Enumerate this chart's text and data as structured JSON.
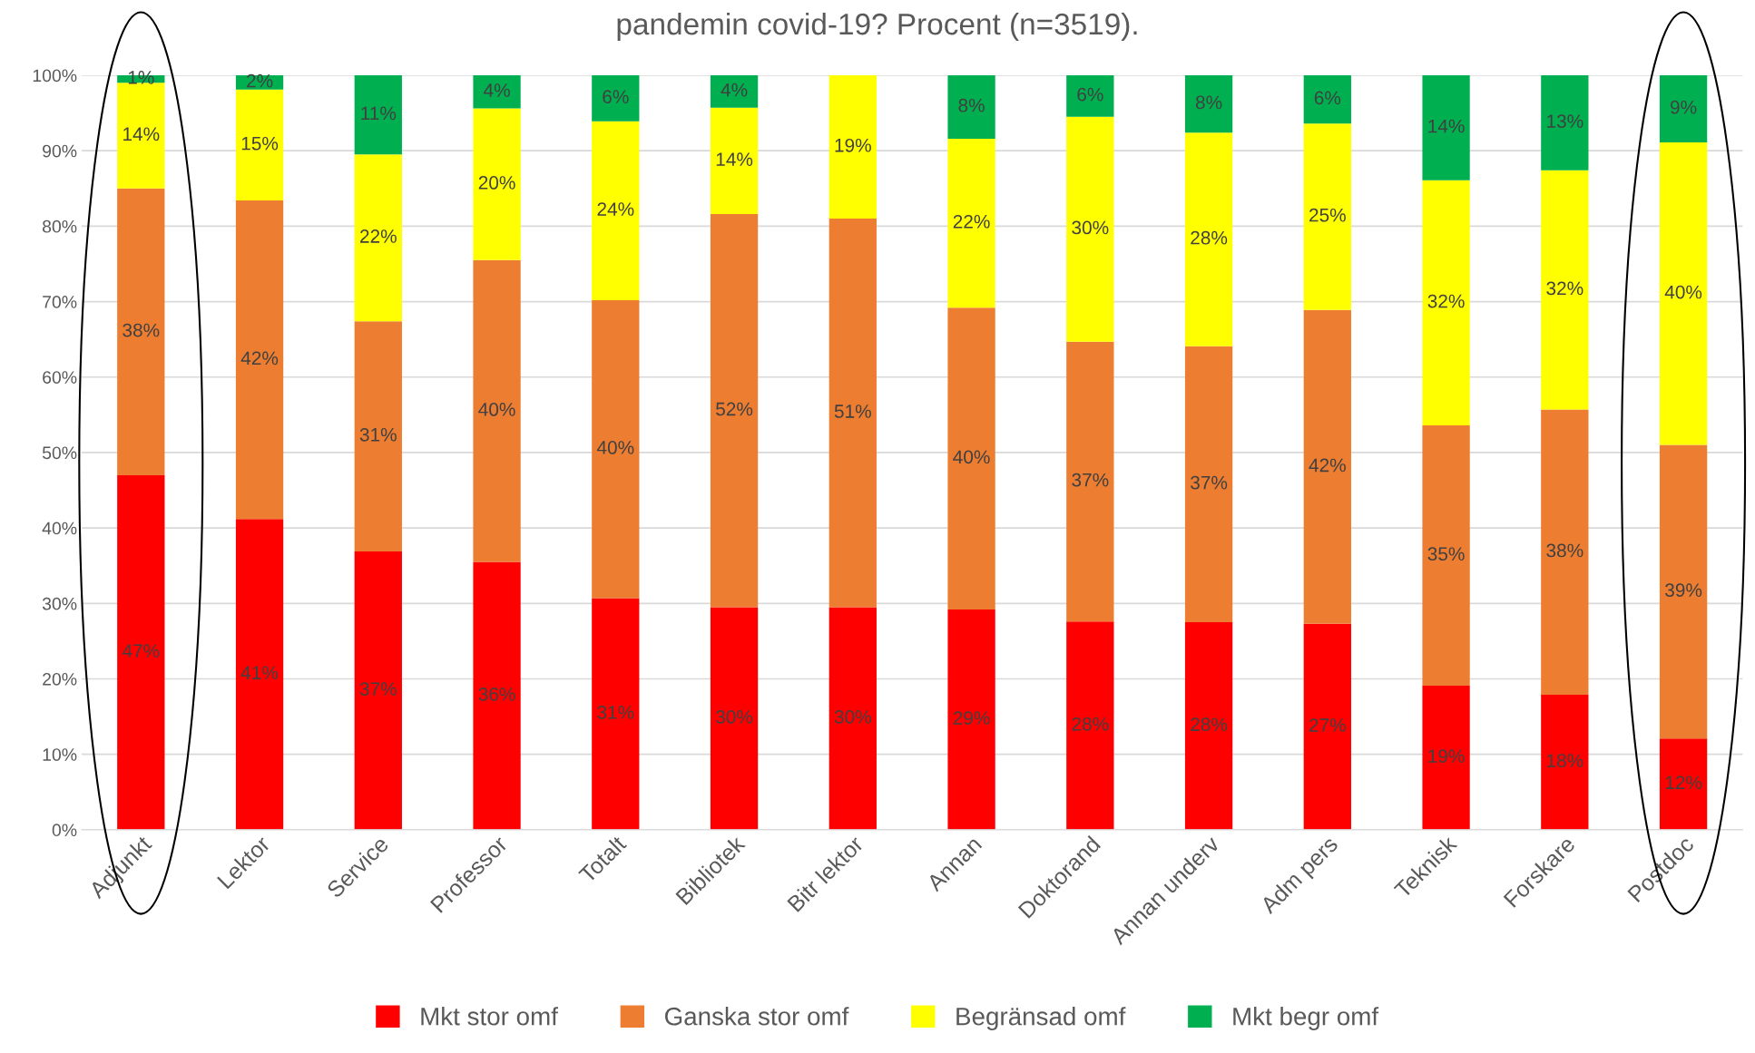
{
  "chart_data": {
    "type": "bar",
    "stacked": true,
    "title": "pandemin covid-19? Procent (n=3519).",
    "categories": [
      "Adjunkt",
      "Lektor",
      "Service",
      "Professor",
      "Totalt",
      "Bibliotek",
      "Bitr lektor",
      "Annan",
      "Doktorand",
      "Annan underv",
      "Adm pers",
      "Teknisk",
      "Forskare",
      "Postdoc"
    ],
    "series": [
      {
        "name": "Mkt stor omf",
        "color": "#ff0000",
        "values": [
          47.0,
          41.2,
          36.9,
          35.5,
          30.7,
          29.5,
          29.5,
          29.2,
          27.6,
          27.5,
          27.3,
          19.1,
          17.9,
          12.1
        ],
        "value_labels": [
          "47%",
          "41%",
          "37%",
          "36%",
          "31%",
          "30%",
          "30%",
          "29%",
          "28%",
          "28%",
          "27%",
          "19%",
          "18%",
          "12%"
        ]
      },
      {
        "name": "Ganska stor omf",
        "color": "#ed7d31",
        "values": [
          38.0,
          42.2,
          30.5,
          40.0,
          39.5,
          52.1,
          51.5,
          40.0,
          37.1,
          36.6,
          41.6,
          34.5,
          37.8,
          38.9
        ],
        "value_labels": [
          "38%",
          "42%",
          "31%",
          "40%",
          "40%",
          "52%",
          "51%",
          "40%",
          "37%",
          "37%",
          "42%",
          "35%",
          "38%",
          "39%"
        ]
      },
      {
        "name": "Begränsad omf",
        "color": "#ffff00",
        "values": [
          14.0,
          14.7,
          22.1,
          20.1,
          23.7,
          14.1,
          19.0,
          22.4,
          29.8,
          28.3,
          24.7,
          32.5,
          31.7,
          40.1
        ],
        "value_labels": [
          "14%",
          "15%",
          "22%",
          "20%",
          "24%",
          "14%",
          "19%",
          "22%",
          "30%",
          "28%",
          "25%",
          "32%",
          "32%",
          "40%"
        ]
      },
      {
        "name": "Mkt begr omf",
        "color": "#00b050",
        "values": [
          1.0,
          1.9,
          10.5,
          4.4,
          6.1,
          4.3,
          0,
          8.4,
          5.5,
          7.6,
          6.4,
          13.9,
          12.6,
          8.9
        ],
        "value_labels": [
          "1%",
          "2%",
          "11%",
          "4%",
          "6%",
          "4%",
          null,
          "8%",
          "6%",
          "8%",
          "6%",
          "14%",
          "13%",
          "9%"
        ]
      }
    ],
    "ylim": [
      0,
      100
    ],
    "yticks": [
      {
        "value": 0,
        "label": "0%"
      },
      {
        "value": 10,
        "label": "10%"
      },
      {
        "value": 20,
        "label": "20%"
      },
      {
        "value": 30,
        "label": "30%"
      },
      {
        "value": 40,
        "label": "40%"
      },
      {
        "value": 50,
        "label": "50%"
      },
      {
        "value": 60,
        "label": "60%"
      },
      {
        "value": 70,
        "label": "70%"
      },
      {
        "value": 80,
        "label": "80%"
      },
      {
        "value": 90,
        "label": "90%"
      },
      {
        "value": 100,
        "label": "100%"
      }
    ],
    "grid": "y",
    "legend": "bottom"
  }
}
